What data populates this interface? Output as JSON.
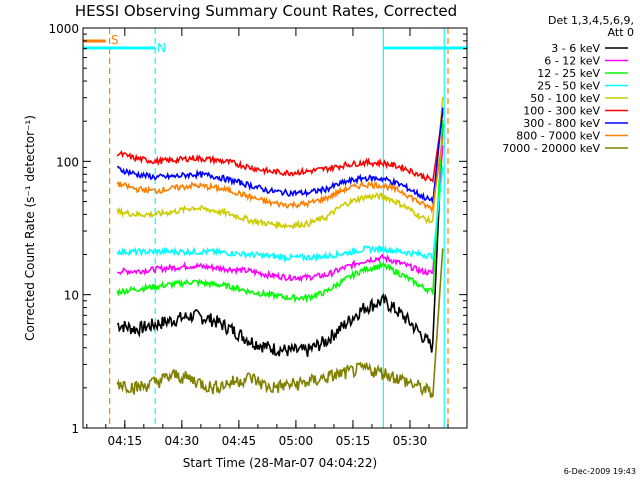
{
  "chart_data": {
    "type": "line",
    "title": "HESSI Observing Summary Count Rates, Corrected",
    "xlabel": "Start Time (28-Mar-07 04:04:22)",
    "ylabel": "Corrected Count Rate (s⁻¹ detector⁻¹)",
    "yscale": "log",
    "ylim": [
      1,
      1000
    ],
    "xlim": [
      "04:04",
      "05:45"
    ],
    "x_tick_labels": [
      "04:15",
      "04:30",
      "04:45",
      "05:00",
      "05:15",
      "05:30"
    ],
    "y_tick_labels": [
      "1",
      "10",
      "100",
      "1000"
    ],
    "legend_header": [
      "Det 1,3,4,5,6,9,",
      "Att 0"
    ],
    "legend_position": "right",
    "footer": "6-Dec-2009 19:43",
    "x": [
      "04:13",
      "04:18",
      "04:23",
      "04:28",
      "04:33",
      "04:38",
      "04:43",
      "04:48",
      "04:53",
      "04:58",
      "05:03",
      "05:08",
      "05:13",
      "05:18",
      "05:23",
      "05:28",
      "05:33",
      "05:36"
    ],
    "series": [
      {
        "name": "3 - 6 keV",
        "color": "#000000",
        "values": [
          6,
          5.5,
          6,
          6.5,
          7,
          6.5,
          5.5,
          4.5,
          4,
          3.8,
          3.8,
          4.5,
          6,
          8,
          9,
          7,
          5,
          4
        ]
      },
      {
        "name": "6 - 12 keV",
        "color": "#ff00ff",
        "values": [
          15,
          15,
          15.5,
          16,
          16.5,
          16,
          15.5,
          15,
          14,
          13.5,
          13.5,
          14,
          16,
          18,
          19,
          17,
          15,
          14.5
        ]
      },
      {
        "name": "12 - 25 keV",
        "color": "#00ff00",
        "values": [
          10.5,
          11,
          11.5,
          12,
          12.5,
          12,
          11.5,
          10.5,
          10,
          9.5,
          9.5,
          10.5,
          13,
          15.5,
          16.5,
          14,
          11.5,
          10.5
        ]
      },
      {
        "name": "25 - 50 keV",
        "color": "#00ffff",
        "values": [
          21,
          21,
          21,
          21,
          21,
          21,
          20.5,
          20,
          19.5,
          19,
          19,
          19.5,
          20.5,
          22,
          22,
          21,
          20,
          19.5
        ]
      },
      {
        "name": "50 - 100 keV",
        "color": "#cccc00",
        "values": [
          42,
          40,
          40,
          42,
          45,
          43,
          40,
          36,
          34,
          33,
          34,
          38,
          48,
          54,
          55,
          47,
          38,
          35
        ]
      },
      {
        "name": "100 - 300 keV",
        "color": "#ff0000",
        "values": [
          115,
          105,
          100,
          102,
          106,
          103,
          98,
          90,
          84,
          82,
          84,
          88,
          94,
          98,
          97,
          90,
          78,
          72
        ]
      },
      {
        "name": "300 - 800 keV",
        "color": "#0000ff",
        "values": [
          88,
          80,
          76,
          77,
          80,
          78,
          72,
          66,
          60,
          58,
          58,
          62,
          70,
          75,
          74,
          66,
          55,
          50
        ]
      },
      {
        "name": "800 - 7000 keV",
        "color": "#ff8000",
        "values": [
          68,
          62,
          60,
          63,
          66,
          64,
          60,
          54,
          49,
          47,
          48,
          53,
          62,
          67,
          66,
          59,
          48,
          44
        ]
      },
      {
        "name": "7000 - 20000 keV",
        "color": "#808000",
        "values": [
          2.2,
          2,
          2.2,
          2.5,
          2.3,
          2,
          2.2,
          2.4,
          2,
          2.1,
          2.2,
          2.4,
          2.6,
          2.8,
          2.6,
          2.3,
          2,
          1.8
        ]
      }
    ],
    "markers": {
      "s_label": "S",
      "n_label": "N",
      "vlines": [
        {
          "time": "04:11",
          "style": "dashed",
          "color": "#ff8000"
        },
        {
          "time": "04:23",
          "style": "dashed",
          "color": "#00ffff"
        },
        {
          "time": "05:23",
          "style": "solid",
          "color": "#00ffff"
        },
        {
          "time": "05:39",
          "style": "solid",
          "color": "#00ffff"
        },
        {
          "time": "05:40",
          "style": "dashed",
          "color": "#ff8000"
        }
      ]
    }
  }
}
